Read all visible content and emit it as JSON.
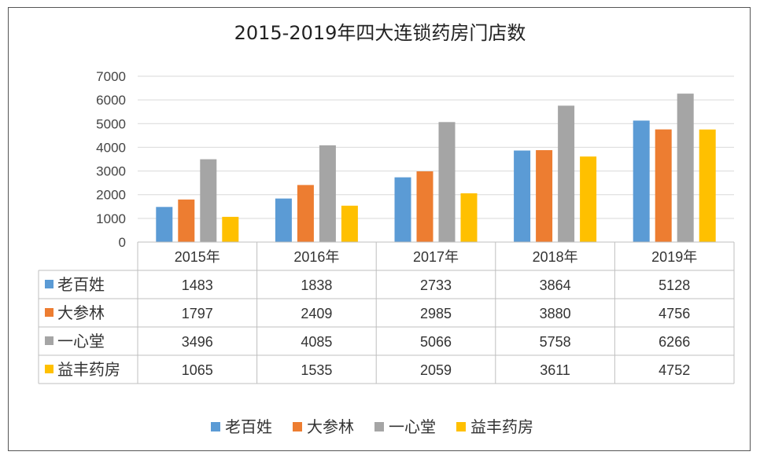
{
  "chart_data": {
    "type": "bar",
    "title": "2015-2019年四大连锁药房门店数",
    "categories": [
      "2015年",
      "2016年",
      "2017年",
      "2018年",
      "2019年"
    ],
    "series": [
      {
        "name": "老百姓",
        "color": "#5B9BD5",
        "values": [
          1483,
          1838,
          2733,
          3864,
          5128
        ]
      },
      {
        "name": "大参林",
        "color": "#ED7D31",
        "values": [
          1797,
          2409,
          2985,
          3880,
          4756
        ]
      },
      {
        "name": "一心堂",
        "color": "#A5A5A5",
        "values": [
          3496,
          4085,
          5066,
          5758,
          6266
        ]
      },
      {
        "name": "益丰药房",
        "color": "#FFC000",
        "values": [
          1065,
          1535,
          2059,
          3611,
          4752
        ]
      }
    ],
    "yticks": [
      0,
      1000,
      2000,
      3000,
      4000,
      5000,
      6000,
      7000
    ],
    "ylim": [
      0,
      7000
    ],
    "xlabel": "",
    "ylabel": "",
    "grid": true,
    "legend": "bottom",
    "data_table": true
  }
}
